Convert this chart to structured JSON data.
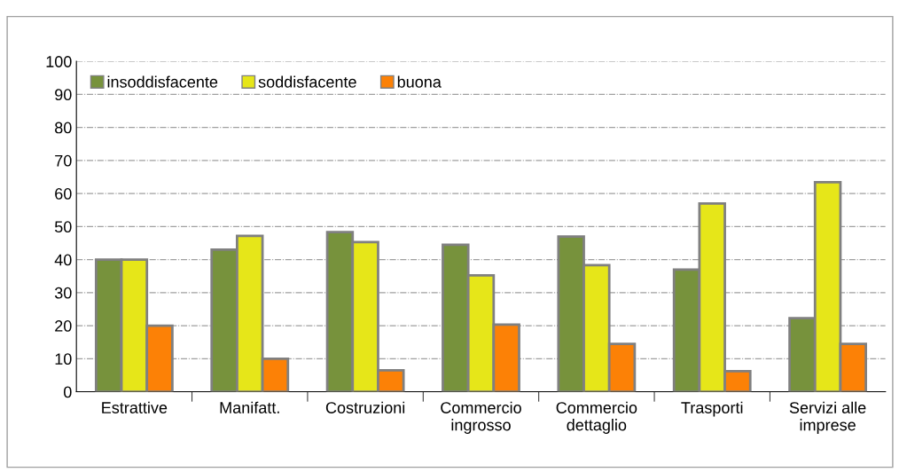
{
  "chart_data": {
    "type": "bar",
    "categories": [
      "Estrattive",
      "Manifatt.",
      "Costruzioni",
      "Commercio\ningrosso",
      "Commercio\ndettaglio",
      "Trasporti",
      "Servizi alle\nimprese"
    ],
    "series": [
      {
        "name": "insoddisfacente",
        "color": "#77923c",
        "values": [
          40,
          43,
          48.3,
          44.5,
          47,
          37,
          22.3
        ]
      },
      {
        "name": "soddisfacente",
        "color": "#e6e619",
        "values": [
          40,
          47.2,
          45.3,
          35.2,
          38.3,
          57,
          63.4
        ]
      },
      {
        "name": "buona",
        "color": "#fc8106",
        "values": [
          20,
          10,
          6.5,
          20.3,
          14.5,
          6.2,
          14.5
        ]
      }
    ],
    "ylim": [
      0,
      100
    ],
    "yticks": [
      0,
      10,
      20,
      30,
      40,
      50,
      60,
      70,
      80,
      90,
      100
    ],
    "grid": "y",
    "legend": "top left"
  }
}
